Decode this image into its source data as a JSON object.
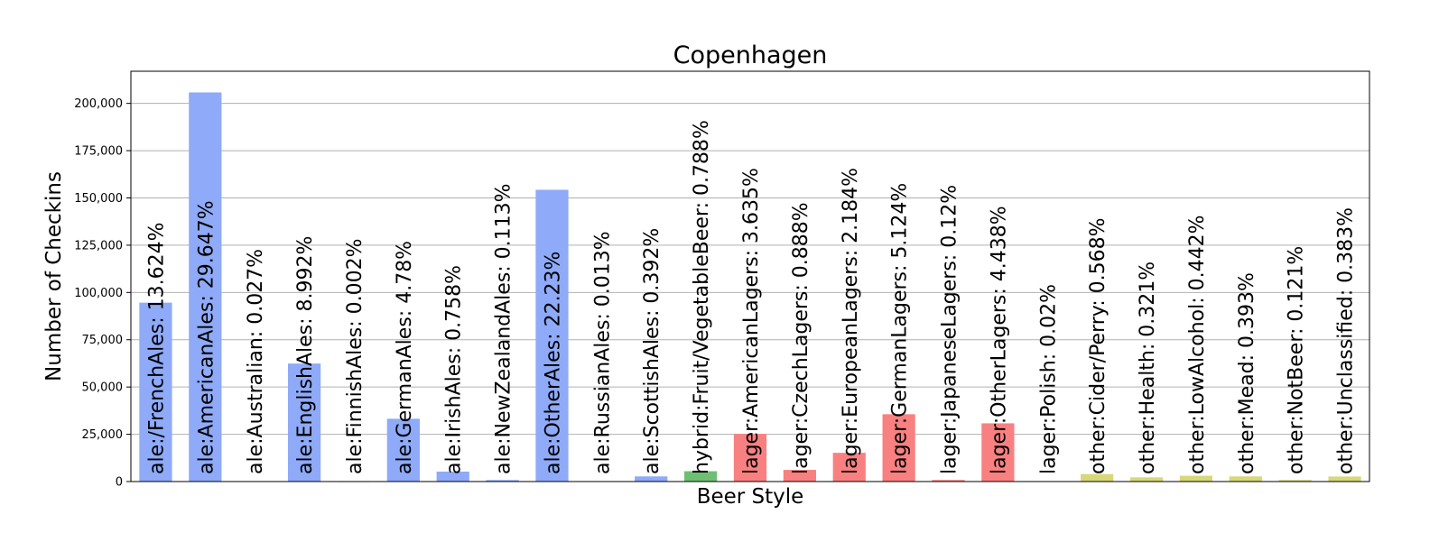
{
  "chart_data": {
    "type": "bar",
    "title": "Copenhagen",
    "xlabel": "Beer Style",
    "ylabel": "Number of Checkins",
    "ylim": [
      0,
      217000
    ],
    "yticks": [
      0,
      25000,
      50000,
      75000,
      100000,
      125000,
      150000,
      175000,
      200000
    ],
    "ytick_labels": [
      "0",
      "25,000",
      "50,000",
      "75,000",
      "100,000",
      "125,000",
      "150,000",
      "175,000",
      "200,000"
    ],
    "grid": "y-major",
    "colors": {
      "ale": "#8eaaf8",
      "hybrid": "#6fbf73",
      "lager": "#f98080",
      "other": "#d8d87a"
    },
    "bars": [
      {
        "label": "ale:/FrenchAles: 13.624%",
        "group": "ale",
        "value": 94600
      },
      {
        "label": "ale:AmericanAles: 29.647%",
        "group": "ale",
        "value": 205800
      },
      {
        "label": "ale:Australian: 0.027%",
        "group": "ale",
        "value": 190
      },
      {
        "label": "ale:EnglishAles: 8.992%",
        "group": "ale",
        "value": 62400
      },
      {
        "label": "ale:FinnishAles: 0.002%",
        "group": "ale",
        "value": 14
      },
      {
        "label": "ale:GermanAles: 4.78%",
        "group": "ale",
        "value": 33200
      },
      {
        "label": "ale:IrishAles: 0.758%",
        "group": "ale",
        "value": 5260
      },
      {
        "label": "ale:NewZealandAles: 0.113%",
        "group": "ale",
        "value": 780
      },
      {
        "label": "ale:OtherAles: 22.23%",
        "group": "ale",
        "value": 154300
      },
      {
        "label": "ale:RussianAles: 0.013%",
        "group": "ale",
        "value": 90
      },
      {
        "label": "ale:ScottishAles: 0.392%",
        "group": "ale",
        "value": 2720
      },
      {
        "label": "hybrid:Fruit/VegetableBeer: 0.788%",
        "group": "hybrid",
        "value": 5470
      },
      {
        "label": "lager:AmericanLagers: 3.635%",
        "group": "lager",
        "value": 25200
      },
      {
        "label": "lager:CzechLagers: 0.888%",
        "group": "lager",
        "value": 6160
      },
      {
        "label": "lager:EuropeanLagers: 2.184%",
        "group": "lager",
        "value": 15200
      },
      {
        "label": "lager:GermanLagers: 5.124%",
        "group": "lager",
        "value": 35600
      },
      {
        "label": "lager:JapaneseLagers: 0.12%",
        "group": "lager",
        "value": 830
      },
      {
        "label": "lager:OtherLagers: 4.438%",
        "group": "lager",
        "value": 30800
      },
      {
        "label": "lager:Polish: 0.02%",
        "group": "lager",
        "value": 140
      },
      {
        "label": "other:Cider/Perry: 0.568%",
        "group": "other",
        "value": 3940
      },
      {
        "label": "other:Health: 0.321%",
        "group": "other",
        "value": 2230
      },
      {
        "label": "other:LowAlcohol: 0.442%",
        "group": "other",
        "value": 3070
      },
      {
        "label": "other:Mead: 0.393%",
        "group": "other",
        "value": 2730
      },
      {
        "label": "other:NotBeer: 0.121%",
        "group": "other",
        "value": 840
      },
      {
        "label": "other:Unclassified: 0.383%",
        "group": "other",
        "value": 2660
      }
    ]
  }
}
